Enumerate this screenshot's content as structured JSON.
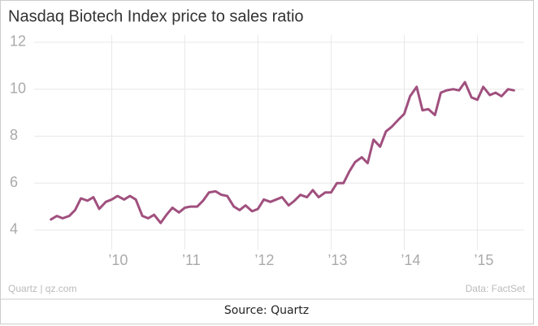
{
  "chart_data": {
    "type": "line",
    "title": "Nasdaq Biotech Index price to sales ratio",
    "x": [
      2009.17,
      2009.25,
      2009.33,
      2009.42,
      2009.5,
      2009.58,
      2009.67,
      2009.75,
      2009.83,
      2009.92,
      2010.0,
      2010.08,
      2010.17,
      2010.25,
      2010.33,
      2010.42,
      2010.5,
      2010.58,
      2010.67,
      2010.75,
      2010.83,
      2010.92,
      2011.0,
      2011.08,
      2011.17,
      2011.25,
      2011.33,
      2011.42,
      2011.5,
      2011.58,
      2011.67,
      2011.75,
      2011.83,
      2011.92,
      2012.0,
      2012.08,
      2012.17,
      2012.25,
      2012.33,
      2012.42,
      2012.5,
      2012.58,
      2012.67,
      2012.75,
      2012.83,
      2012.92,
      2013.0,
      2013.08,
      2013.17,
      2013.25,
      2013.33,
      2013.42,
      2013.5,
      2013.58,
      2013.67,
      2013.75,
      2013.83,
      2013.92,
      2014.0,
      2014.08,
      2014.17,
      2014.25,
      2014.33,
      2014.42,
      2014.5,
      2014.58,
      2014.67,
      2014.75,
      2014.83,
      2014.92,
      2015.0,
      2015.08,
      2015.17,
      2015.25,
      2015.33,
      2015.42,
      2015.5
    ],
    "series": [
      {
        "name": "Price to sales ratio",
        "color": "#a0507e",
        "values": [
          4.45,
          4.6,
          4.5,
          4.6,
          4.85,
          5.35,
          5.25,
          5.4,
          4.9,
          5.2,
          5.3,
          5.45,
          5.3,
          5.45,
          5.3,
          4.6,
          4.5,
          4.65,
          4.3,
          4.65,
          4.95,
          4.75,
          4.95,
          5.0,
          5.0,
          5.25,
          5.6,
          5.65,
          5.5,
          5.45,
          5.0,
          4.85,
          5.05,
          4.8,
          4.9,
          5.3,
          5.2,
          5.3,
          5.4,
          5.05,
          5.25,
          5.5,
          5.4,
          5.7,
          5.4,
          5.6,
          5.6,
          6.0,
          6.0,
          6.5,
          6.9,
          7.1,
          6.85,
          7.85,
          7.55,
          8.2,
          8.4,
          8.7,
          8.95,
          9.7,
          10.1,
          9.1,
          9.15,
          8.9,
          9.85,
          9.95,
          10.0,
          9.95,
          10.3,
          9.65,
          9.55,
          10.1,
          9.75,
          9.85,
          9.7,
          10.0,
          9.95
        ]
      }
    ],
    "xlim": [
      2008.94,
      2015.64
    ],
    "xticks": [
      {
        "value": 2010,
        "label": "’10"
      },
      {
        "value": 2011,
        "label": "’11"
      },
      {
        "value": 2012,
        "label": "’12"
      },
      {
        "value": 2013,
        "label": "’13"
      },
      {
        "value": 2014,
        "label": "’14"
      },
      {
        "value": 2015,
        "label": "’15"
      }
    ],
    "ylim": [
      3.5,
      12.3
    ],
    "yticks": [
      4,
      6,
      8,
      10,
      12
    ],
    "grid": true,
    "source_left": "Quartz | qz.com",
    "source_right": "Data: FactSet"
  },
  "caption": "Source: Quartz"
}
